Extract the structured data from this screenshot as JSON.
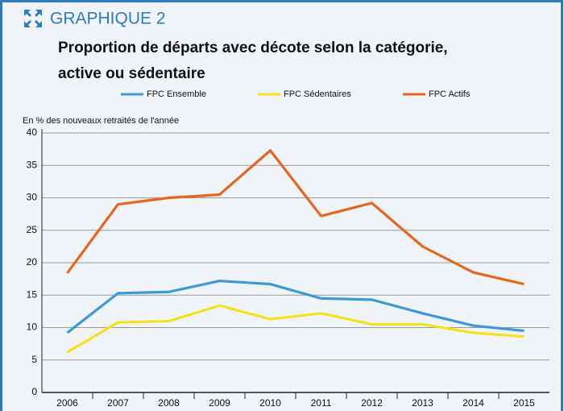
{
  "chart_data": {
    "type": "line",
    "title": "GRAPHIQUE 2",
    "subtitle": "Proportion de départs avec décote selon la catégorie, active ou sédentaire",
    "y_label": "En % des nouveaux retraités de l'année",
    "categories": [
      "2006",
      "2007",
      "2008",
      "2009",
      "2010",
      "2011",
      "2012",
      "2013",
      "2014",
      "2015"
    ],
    "series": [
      {
        "name": "FPC Ensemble",
        "color": "#3d9ad6",
        "values": [
          9.2,
          15.3,
          15.5,
          17.2,
          16.7,
          14.5,
          14.3,
          12.2,
          10.3,
          9.5
        ]
      },
      {
        "name": "FPC Sédentaires",
        "color": "#f3e21c",
        "values": [
          6.2,
          10.8,
          11.0,
          13.4,
          11.3,
          12.2,
          10.5,
          10.5,
          9.2,
          8.6
        ]
      },
      {
        "name": "FPC Actifs",
        "color": "#e6661f",
        "values": [
          18.4,
          29.0,
          30.0,
          30.5,
          37.3,
          27.2,
          29.2,
          22.5,
          18.5,
          16.7
        ]
      }
    ],
    "ylim": [
      0,
      40
    ],
    "yticks": [
      0,
      5,
      10,
      15,
      20,
      25,
      30,
      35,
      40
    ],
    "grid": true
  }
}
